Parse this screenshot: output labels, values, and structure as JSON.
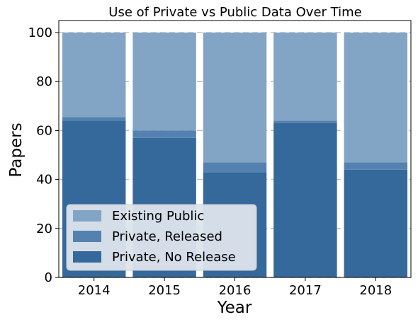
{
  "chart_data": {
    "type": "bar",
    "stacked": true,
    "title": "Use of Private vs Public Data Over Time",
    "xlabel": "Year",
    "ylabel": "Papers",
    "categories": [
      "2014",
      "2015",
      "2016",
      "2017",
      "2018"
    ],
    "ylim": [
      0,
      100
    ],
    "yticks": [
      "0",
      "20",
      "40",
      "60",
      "80",
      "100"
    ],
    "grid": "horizontal dashed",
    "legend_position": "lower-left",
    "series": [
      {
        "name": "Private, No Release",
        "values": [
          64,
          57,
          43,
          63,
          44
        ],
        "color": "#35689b"
      },
      {
        "name": "Private, Released",
        "values": [
          1.5,
          3,
          4,
          1,
          3
        ],
        "color": "#5482b0"
      },
      {
        "name": "Existing Public",
        "values": [
          34.5,
          40,
          53,
          36,
          53
        ],
        "color": "#83a5c5"
      }
    ],
    "legend_order": [
      "Existing Public",
      "Private, Released",
      "Private, No Release"
    ]
  }
}
